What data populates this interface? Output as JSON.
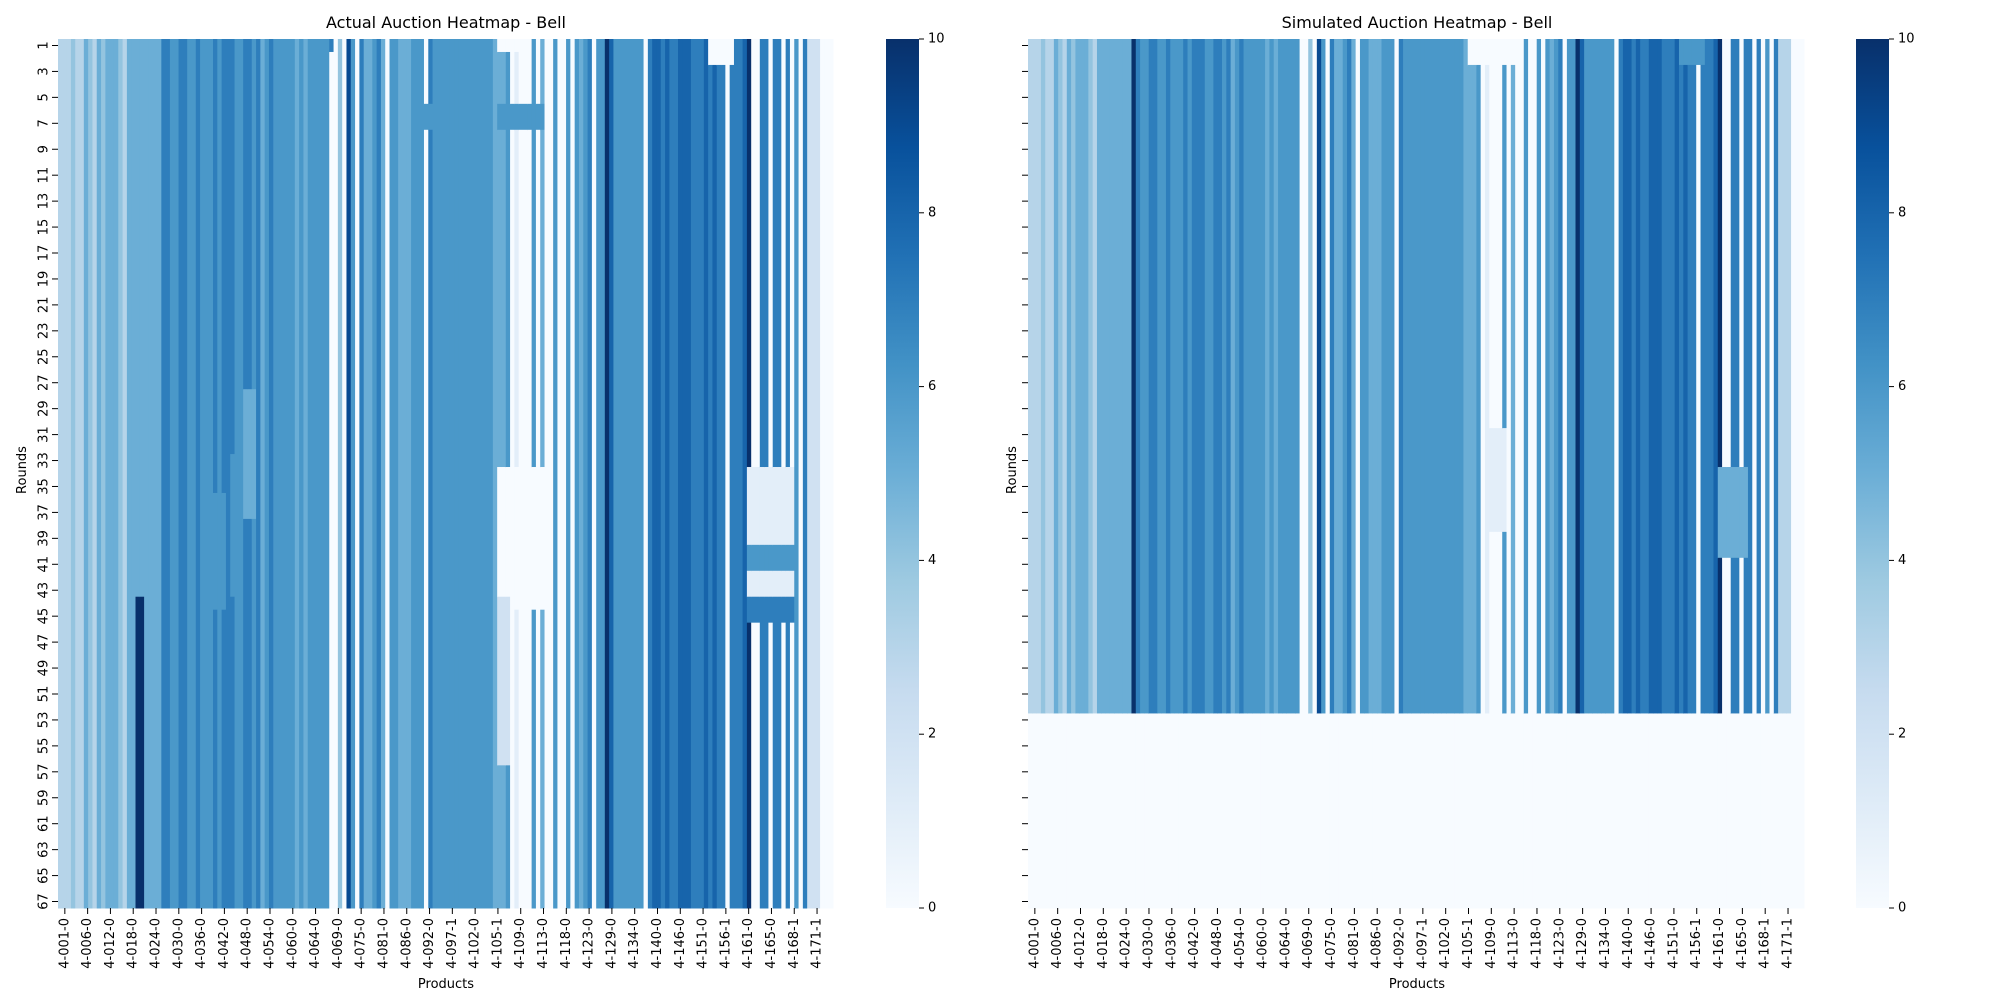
{
  "figure": {
    "background": "#ffffff",
    "colormap": [
      "#f7fbff",
      "#deebf7",
      "#c6dbef",
      "#9ecae1",
      "#6baed6",
      "#4292c6",
      "#2171b5",
      "#08519c",
      "#08306b"
    ],
    "empty_cell_color": "#ffffff"
  },
  "chart_data": [
    {
      "type": "heatmap",
      "title": "Actual Auction Heatmap - Bell",
      "xlabel": "Products",
      "ylabel": "Rounds",
      "n_rows": 67,
      "n_cols": 180,
      "value_range": [
        0,
        10
      ],
      "y_tick_labels": [
        "1",
        "3",
        "5",
        "7",
        "9",
        "11",
        "13",
        "15",
        "17",
        "19",
        "21",
        "23",
        "25",
        "27",
        "29",
        "31",
        "33",
        "35",
        "37",
        "39",
        "41",
        "43",
        "45",
        "47",
        "49",
        "51",
        "53",
        "55",
        "57",
        "59",
        "61",
        "63",
        "65",
        "67"
      ],
      "x_tick_labels": [
        "4-001-0",
        "4-006-0",
        "4-012-0",
        "4-018-0",
        "4-024-0",
        "4-030-0",
        "4-036-0",
        "4-042-0",
        "4-048-0",
        "4-054-0",
        "4-060-0",
        "4-064-0",
        "4-069-0",
        "4-075-0",
        "4-081-0",
        "4-086-0",
        "4-092-0",
        "4-097-1",
        "4-102-0",
        "4-105-1",
        "4-109-0",
        "4-113-0",
        "4-118-0",
        "4-123-0",
        "4-129-0",
        "4-134-0",
        "4-140-0",
        "4-146-0",
        "4-151-0",
        "4-156-1",
        "4-161-0",
        "4-165-0",
        "4-168-1",
        "4-171-1"
      ],
      "column_values": [
        3,
        3,
        3,
        4,
        3,
        3,
        5,
        4,
        3,
        5,
        4,
        5,
        5,
        5,
        4,
        3,
        5,
        5,
        5,
        5,
        5,
        5,
        5,
        5,
        7,
        7,
        6,
        6,
        7,
        7,
        6,
        6,
        7,
        6,
        6,
        6,
        7,
        6,
        7,
        7,
        7,
        6,
        6,
        7,
        7,
        6,
        7,
        5,
        6,
        7,
        6,
        6,
        6,
        6,
        6,
        5,
        6,
        5,
        6,
        6,
        6,
        6,
        6,
        0,
        1,
        4,
        0,
        9,
        6,
        0,
        7,
        5,
        5,
        6,
        7,
        5,
        0,
        6,
        6,
        5,
        5,
        5,
        6,
        6,
        6,
        0,
        7,
        6,
        6,
        6,
        6,
        6,
        6,
        6,
        6,
        6,
        6,
        6,
        6,
        6,
        6,
        5,
        5,
        5,
        6,
        0,
        1,
        0,
        0,
        0,
        6,
        0,
        5,
        0,
        0,
        6,
        0,
        0,
        6,
        0,
        6,
        5,
        6,
        7,
        0,
        6,
        6,
        10,
        8,
        6,
        6,
        6,
        6,
        6,
        6,
        6,
        0,
        7,
        8,
        8,
        7,
        8,
        7,
        7,
        8,
        8,
        8,
        7,
        7,
        7,
        8,
        7,
        8,
        7,
        7,
        0,
        7,
        7,
        7,
        8,
        10,
        0,
        0,
        7,
        7,
        0,
        7,
        7,
        0,
        7,
        0,
        6,
        0,
        7,
        0,
        0,
        6,
        0,
        0,
        0
      ],
      "patches": [
        {
          "rows": [
            44,
            67
          ],
          "cols": [
            18,
            19
          ],
          "value": 10
        },
        {
          "rows": [
            36,
            44
          ],
          "cols": [
            36,
            38
          ],
          "value": 6
        },
        {
          "rows": [
            33,
            43
          ],
          "cols": [
            40,
            42
          ],
          "value": 6
        },
        {
          "rows": [
            28,
            37
          ],
          "cols": [
            43,
            45
          ],
          "value": 5
        },
        {
          "rows": [
            1,
            67
          ],
          "cols": [
            63,
            64
          ],
          "value": 0
        },
        {
          "rows": [
            1,
            1
          ],
          "cols": [
            63,
            63
          ],
          "value": 7
        },
        {
          "rows": [
            6,
            7
          ],
          "cols": [
            60,
            61
          ],
          "value": 6
        },
        {
          "rows": [
            12,
            14
          ],
          "cols": [
            60,
            61
          ],
          "value": 6
        },
        {
          "rows": [
            15,
            18
          ],
          "cols": [
            60,
            61
          ],
          "value": 6
        },
        {
          "rows": [
            6,
            7
          ],
          "cols": [
            85,
            86
          ],
          "value": 6
        },
        {
          "rows": [
            1,
            1
          ],
          "cols": [
            102,
            106
          ],
          "value": 0
        },
        {
          "rows": [
            6,
            7
          ],
          "cols": [
            102,
            112
          ],
          "value": 6
        },
        {
          "rows": [
            40,
            41
          ],
          "cols": [
            102,
            112
          ],
          "value": 6
        },
        {
          "rows": [
            34,
            44
          ],
          "cols": [
            102,
            112
          ],
          "value": 0
        },
        {
          "rows": [
            44,
            56
          ],
          "cols": [
            102,
            104
          ],
          "value": 2
        },
        {
          "rows": [
            1,
            2
          ],
          "cols": [
            151,
            156
          ],
          "value": 0
        },
        {
          "rows": [
            34,
            44
          ],
          "cols": [
            160,
            170
          ],
          "value": 1
        },
        {
          "rows": [
            40,
            41
          ],
          "cols": [
            160,
            170
          ],
          "value": 6
        },
        {
          "rows": [
            44,
            45
          ],
          "cols": [
            160,
            170
          ],
          "value": 7
        },
        {
          "rows": [
            1,
            67
          ],
          "cols": [
            174,
            176
          ],
          "value": 2
        }
      ]
    },
    {
      "type": "heatmap",
      "title": "Simulated Auction Heatmap - Bell",
      "xlabel": "Products",
      "ylabel": "Rounds",
      "n_rows": 67,
      "n_cols": 180,
      "value_range": [
        0,
        10
      ],
      "active_rounds": 52,
      "y_tick_labels": [],
      "x_tick_labels": [
        "4-001-0",
        "4-006-0",
        "4-012-0",
        "4-018-0",
        "4-024-0",
        "4-030-0",
        "4-036-0",
        "4-042-0",
        "4-048-0",
        "4-054-0",
        "4-060-0",
        "4-064-0",
        "4-069-0",
        "4-075-0",
        "4-081-0",
        "4-086-0",
        "4-092-0",
        "4-097-1",
        "4-102-0",
        "4-105-1",
        "4-109-0",
        "4-113-0",
        "4-118-0",
        "4-123-0",
        "4-129-0",
        "4-134-0",
        "4-140-0",
        "4-146-0",
        "4-151-0",
        "4-156-1",
        "4-161-0",
        "4-165-0",
        "4-168-1",
        "4-171-1"
      ],
      "column_values": [
        3,
        3,
        3,
        4,
        3,
        3,
        5,
        4,
        3,
        5,
        4,
        5,
        5,
        5,
        4,
        3,
        5,
        5,
        5,
        5,
        5,
        5,
        5,
        5,
        10,
        7,
        6,
        6,
        7,
        7,
        6,
        6,
        7,
        6,
        6,
        6,
        7,
        6,
        7,
        7,
        7,
        6,
        6,
        7,
        7,
        6,
        7,
        5,
        6,
        7,
        6,
        6,
        6,
        6,
        6,
        5,
        6,
        5,
        6,
        6,
        6,
        6,
        6,
        0,
        1,
        4,
        0,
        9,
        6,
        0,
        7,
        5,
        5,
        6,
        7,
        5,
        0,
        6,
        6,
        5,
        5,
        5,
        6,
        6,
        6,
        0,
        7,
        6,
        6,
        6,
        6,
        6,
        6,
        6,
        6,
        6,
        6,
        6,
        6,
        6,
        6,
        5,
        5,
        5,
        6,
        0,
        1,
        0,
        0,
        0,
        6,
        0,
        5,
        0,
        0,
        6,
        0,
        0,
        6,
        0,
        6,
        5,
        6,
        7,
        0,
        6,
        6,
        10,
        8,
        6,
        6,
        6,
        6,
        6,
        6,
        6,
        0,
        7,
        8,
        8,
        7,
        8,
        7,
        7,
        8,
        8,
        8,
        7,
        7,
        7,
        8,
        7,
        8,
        7,
        7,
        0,
        7,
        7,
        7,
        8,
        10,
        0,
        0,
        7,
        7,
        0,
        7,
        7,
        0,
        7,
        0,
        6,
        0,
        7,
        0,
        0,
        6,
        0,
        0,
        0
      ],
      "patches": [
        {
          "rows": [
            1,
            52
          ],
          "cols": [
            63,
            64
          ],
          "value": 0
        },
        {
          "rows": [
            1,
            2
          ],
          "cols": [
            102,
            112
          ],
          "value": 0
        },
        {
          "rows": [
            31,
            38
          ],
          "cols": [
            106,
            110
          ],
          "value": 1
        },
        {
          "rows": [
            33,
            52
          ],
          "cols": [
            102,
            103
          ],
          "value": 5
        },
        {
          "rows": [
            1,
            2
          ],
          "cols": [
            151,
            156
          ],
          "value": 6
        },
        {
          "rows": [
            34,
            40
          ],
          "cols": [
            160,
            166
          ],
          "value": 5
        },
        {
          "rows": [
            1,
            52
          ],
          "cols": [
            174,
            176
          ],
          "value": 3
        }
      ]
    }
  ],
  "colorbars": [
    {
      "ticks": [
        "0",
        "2",
        "4",
        "6",
        "8",
        "10"
      ]
    },
    {
      "ticks": [
        "0",
        "2",
        "4",
        "6",
        "8",
        "10"
      ]
    }
  ]
}
